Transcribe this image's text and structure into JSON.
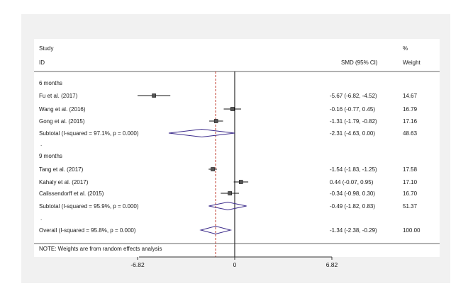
{
  "header": {
    "study": "Study",
    "id": "ID",
    "smd": "SMD (95% CI)",
    "pct": "%",
    "weight": "Weight"
  },
  "note": "NOTE: Weights are from random effects analysis",
  "chart_data": {
    "type": "forest",
    "x_ticks": [
      -6.82,
      0,
      6.82
    ],
    "x_tick_labels": [
      "-6.82",
      "0",
      "6.82"
    ],
    "overall_effect_line": -1.34,
    "groups": [
      {
        "title": "6 months",
        "studies": [
          {
            "label": "Fu et al. (2017)",
            "smd": -5.67,
            "lo": -6.82,
            "hi": -4.52,
            "ci_text": "-5.67 (-6.82, -4.52)",
            "weight": "14.67"
          },
          {
            "label": "Wang et al. (2016)",
            "smd": -0.16,
            "lo": -0.77,
            "hi": 0.45,
            "ci_text": "-0.16 (-0.77, 0.45)",
            "weight": "16.79"
          },
          {
            "label": "Gong et al. (2015)",
            "smd": -1.31,
            "lo": -1.79,
            "hi": -0.82,
            "ci_text": "-1.31 (-1.79, -0.82)",
            "weight": "17.16"
          }
        ],
        "subtotal": {
          "label": "Subtotal  (I-squared = 97.1%, p = 0.000)",
          "smd": -2.31,
          "lo": -4.63,
          "hi": 0.0,
          "ci_text": "-2.31 (-4.63, 0.00)",
          "weight": "48.63"
        }
      },
      {
        "title": "9 months",
        "studies": [
          {
            "label": "Tang et al. (2017)",
            "smd": -1.54,
            "lo": -1.83,
            "hi": -1.25,
            "ci_text": "-1.54 (-1.83, -1.25)",
            "weight": "17.58"
          },
          {
            "label": "Kahaly et al. (2017)",
            "smd": 0.44,
            "lo": -0.07,
            "hi": 0.95,
            "ci_text": "0.44 (-0.07, 0.95)",
            "weight": "17.10"
          },
          {
            "label": "Calissendorff et al. (2015)",
            "smd": -0.34,
            "lo": -0.98,
            "hi": 0.3,
            "ci_text": "-0.34 (-0.98, 0.30)",
            "weight": "16.70"
          }
        ],
        "subtotal": {
          "label": "Subtotal  (I-squared = 95.9%, p = 0.000)",
          "smd": -0.49,
          "lo": -1.82,
          "hi": 0.83,
          "ci_text": "-0.49 (-1.82, 0.83)",
          "weight": "51.37"
        }
      }
    ],
    "overall": {
      "label": "Overall  (I-squared = 95.8%, p = 0.000)",
      "smd": -1.34,
      "lo": -2.38,
      "hi": -0.29,
      "ci_text": "-1.34 (-2.38, -0.29)",
      "weight": "100.00"
    }
  }
}
